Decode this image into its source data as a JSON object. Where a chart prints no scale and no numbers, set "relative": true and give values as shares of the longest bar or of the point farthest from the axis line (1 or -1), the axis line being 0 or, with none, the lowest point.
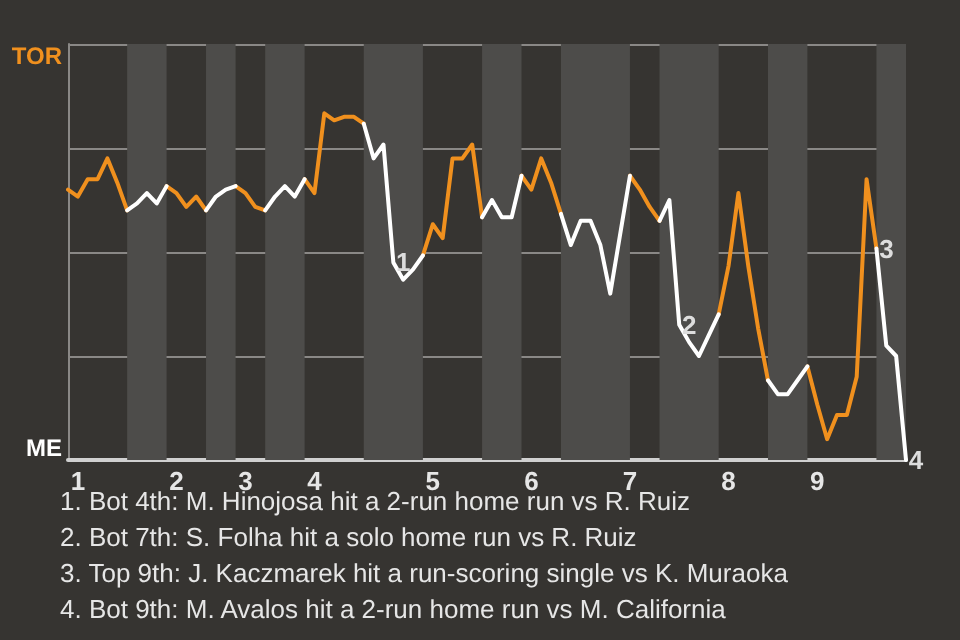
{
  "chart_data": {
    "type": "line",
    "relative": true,
    "categories": [
      null,
      "1",
      null,
      null,
      null,
      null,
      null,
      null,
      null,
      null,
      null,
      "2",
      null,
      null,
      null,
      null,
      null,
      null,
      "3",
      null,
      null,
      null,
      null,
      null,
      null,
      "4",
      null,
      null,
      null,
      null,
      null,
      null,
      null,
      null,
      null,
      null,
      null,
      "5",
      null,
      null,
      null,
      null,
      null,
      null,
      null,
      null,
      null,
      "6",
      null,
      null,
      null,
      null,
      null,
      null,
      null,
      null,
      null,
      "7",
      null,
      null,
      null,
      null,
      null,
      null,
      null,
      null,
      null,
      "8",
      null,
      null,
      null,
      null,
      null,
      null,
      null,
      null,
      "9",
      null,
      null,
      null,
      null,
      null,
      null,
      null,
      null,
      null
    ],
    "grid": "y",
    "marker": "none",
    "line_style": "solid",
    "series": [
      {
        "color": "#f0901e",
        "values": [
          0.78,
          0.76,
          0.81,
          0.81,
          0.87,
          0.8,
          0.72,
          null,
          null,
          null,
          0.79,
          0.77,
          0.73,
          0.76,
          0.72,
          null,
          null,
          0.79,
          0.77,
          0.73,
          0.72,
          null,
          null,
          null,
          0.81,
          0.77,
          1,
          0.98,
          0.99,
          0.99,
          0.97,
          null,
          null,
          null,
          null,
          null,
          0.59,
          0.68,
          0.64,
          0.87,
          0.87,
          0.91,
          0.7,
          null,
          null,
          null,
          0.82,
          0.78,
          0.87,
          0.8,
          0.71,
          null,
          null,
          null,
          null,
          null,
          null,
          0.82,
          0.78,
          0.73,
          0.69,
          null,
          null,
          null,
          null,
          null,
          0.42,
          0.56,
          0.77,
          0.56,
          0.38,
          0.23,
          null,
          null,
          null,
          0.27,
          0.16,
          0.06,
          0.13,
          0.13,
          0.24,
          0.81,
          0.61,
          null,
          null,
          null
        ]
      },
      {
        "color": "#ffffff",
        "values": [
          null,
          null,
          null,
          null,
          null,
          null,
          0.72,
          0.74,
          0.77,
          0.74,
          0.79,
          null,
          null,
          null,
          0.72,
          0.76,
          0.78,
          0.79,
          null,
          null,
          0.72,
          0.76,
          0.79,
          0.76,
          0.81,
          null,
          null,
          null,
          null,
          null,
          0.97,
          0.87,
          0.91,
          0.57,
          0.52,
          0.55,
          0.59,
          null,
          null,
          null,
          null,
          null,
          0.7,
          0.75,
          0.7,
          0.7,
          0.82,
          null,
          null,
          null,
          0.71,
          0.62,
          0.69,
          0.69,
          0.62,
          0.48,
          0.65,
          0.82,
          null,
          null,
          0.69,
          0.75,
          0.39,
          0.34,
          0.3,
          0.36,
          0.42,
          null,
          null,
          null,
          null,
          0.23,
          0.19,
          0.19,
          0.23,
          0.27,
          null,
          null,
          null,
          null,
          null,
          null,
          0.61,
          0.33,
          0.3,
          0
        ]
      }
    ],
    "annotations": [
      {
        "text": "1",
        "y": 0.57
      },
      {
        "text": "2",
        "y": 0.39
      },
      {
        "text": "3",
        "y": 0.61
      },
      {
        "text": "4",
        "y": 0
      },
      "TOR",
      "ME",
      "1. Bot 4th: M. Hinojosa hit a 2-run home run vs R. Ruiz",
      "2. Bot 7th: S. Folha hit a solo home run vs R. Ruiz",
      "3. Top 9th: J. Kaczmarek hit a run-scoring single vs K. Muraoka",
      "4. Bot 9th: M. Avalos hit a 2-run home run vs M. California"
    ]
  }
}
